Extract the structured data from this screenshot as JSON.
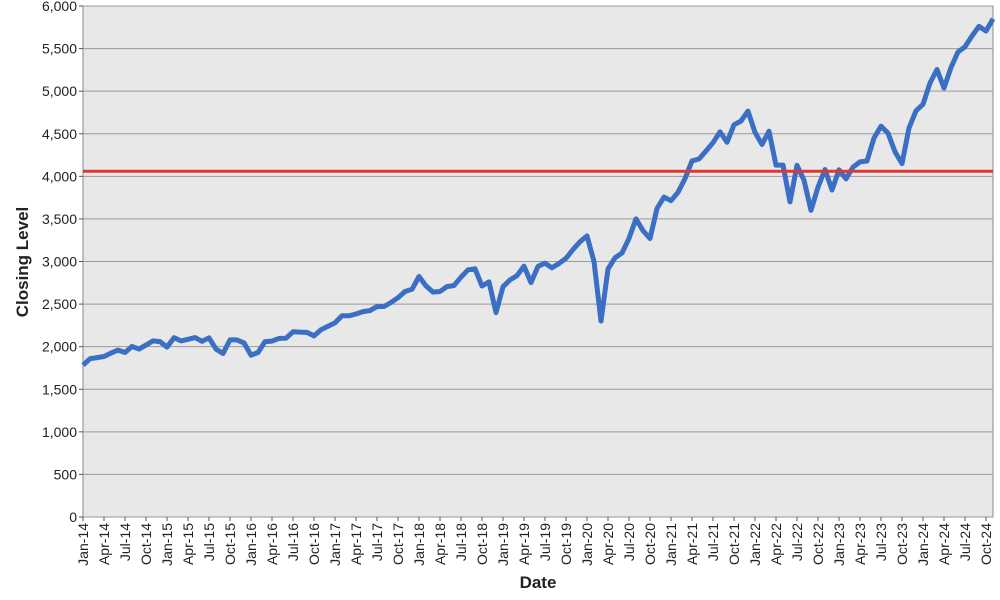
{
  "chart_data": {
    "type": "line",
    "x_label": "Date",
    "y_label": "Closing Level",
    "x": [
      "2014-01",
      "2014-02",
      "2014-03",
      "2014-04",
      "2014-05",
      "2014-06",
      "2014-07",
      "2014-08",
      "2014-09",
      "2014-10",
      "2014-11",
      "2014-12",
      "2015-01",
      "2015-02",
      "2015-03",
      "2015-04",
      "2015-05",
      "2015-06",
      "2015-07",
      "2015-08",
      "2015-09",
      "2015-10",
      "2015-11",
      "2015-12",
      "2016-01",
      "2016-02",
      "2016-03",
      "2016-04",
      "2016-05",
      "2016-06",
      "2016-07",
      "2016-08",
      "2016-09",
      "2016-10",
      "2016-11",
      "2016-12",
      "2017-01",
      "2017-02",
      "2017-03",
      "2017-04",
      "2017-05",
      "2017-06",
      "2017-07",
      "2017-08",
      "2017-09",
      "2017-10",
      "2017-11",
      "2017-12",
      "2018-01",
      "2018-02",
      "2018-03",
      "2018-04",
      "2018-05",
      "2018-06",
      "2018-07",
      "2018-08",
      "2018-09",
      "2018-10",
      "2018-11",
      "2018-12",
      "2019-01",
      "2019-02",
      "2019-03",
      "2019-04",
      "2019-05",
      "2019-06",
      "2019-07",
      "2019-08",
      "2019-09",
      "2019-10",
      "2019-11",
      "2019-12",
      "2020-01",
      "2020-02",
      "2020-03",
      "2020-04",
      "2020-05",
      "2020-06",
      "2020-07",
      "2020-08",
      "2020-09",
      "2020-10",
      "2020-11",
      "2020-12",
      "2021-01",
      "2021-02",
      "2021-03",
      "2021-04",
      "2021-05",
      "2021-06",
      "2021-07",
      "2021-08",
      "2021-09",
      "2021-10",
      "2021-11",
      "2021-12",
      "2022-01",
      "2022-02",
      "2022-03",
      "2022-04",
      "2022-05",
      "2022-06",
      "2022-07",
      "2022-08",
      "2022-09",
      "2022-10",
      "2022-11",
      "2022-12",
      "2023-01",
      "2023-02",
      "2023-03",
      "2023-04",
      "2023-05",
      "2023-06",
      "2023-07",
      "2023-08",
      "2023-09",
      "2023-10",
      "2023-11",
      "2023-12",
      "2024-01",
      "2024-02",
      "2024-03",
      "2024-04",
      "2024-05",
      "2024-06",
      "2024-07",
      "2024-08",
      "2024-09",
      "2024-10",
      "2024-11"
    ],
    "values": [
      1782,
      1859,
      1872,
      1884,
      1924,
      1960,
      1931,
      2003,
      1972,
      2018,
      2068,
      2059,
      1995,
      2105,
      2068,
      2086,
      2107,
      2063,
      2104,
      1972,
      1920,
      2079,
      2080,
      2044,
      1900,
      1932,
      2060,
      2065,
      2097,
      2099,
      2174,
      2171,
      2168,
      2126,
      2199,
      2239,
      2279,
      2364,
      2363,
      2384,
      2412,
      2423,
      2470,
      2472,
      2519,
      2575,
      2648,
      2674,
      2824,
      2714,
      2641,
      2648,
      2705,
      2718,
      2816,
      2902,
      2914,
      2712,
      2760,
      2400,
      2704,
      2784,
      2834,
      2946,
      2752,
      2942,
      2980,
      2926,
      2977,
      3038,
      3141,
      3231,
      3300,
      3000,
      2300,
      2912,
      3044,
      3100,
      3271,
      3500,
      3363,
      3270,
      3622,
      3756,
      3714,
      3811,
      3973,
      4181,
      4204,
      4298,
      4395,
      4523,
      4400,
      4605,
      4650,
      4766,
      4516,
      4374,
      4530,
      4132,
      4132,
      3700,
      4130,
      3955,
      3600,
      3872,
      4080,
      3840,
      4077,
      3970,
      4109,
      4169,
      4180,
      4450,
      4589,
      4508,
      4288,
      4150,
      4568,
      4770,
      4846,
      5096,
      5254,
      5036,
      5278,
      5460,
      5522,
      5648,
      5762,
      5705,
      5850
    ],
    "color": "#3a6fc4",
    "reference_line": {
      "value": 4060,
      "color": "#e23636"
    },
    "xlim": [
      "2014-01",
      "2024-11"
    ],
    "ylim": [
      0,
      6000
    ],
    "yticks": [
      0,
      {
        "value": 500,
        "label": "500"
      },
      {
        "value": 1000,
        "label": "1,000"
      },
      {
        "value": 1500,
        "label": "1,500"
      },
      {
        "value": 2000,
        "label": "2,000"
      },
      {
        "value": 2500,
        "label": "2,500"
      },
      {
        "value": 3000,
        "label": "3,000"
      },
      {
        "value": 3500,
        "label": "3,500"
      },
      {
        "value": 4000,
        "label": "4,000"
      },
      {
        "value": 4500,
        "label": "4,500"
      },
      {
        "value": 5000,
        "label": "5,000"
      },
      {
        "value": 5500,
        "label": "5,500"
      },
      {
        "value": 6000,
        "label": "6,000"
      }
    ],
    "xticks": [
      {
        "value": "2014-01",
        "label": "Jan-14"
      },
      {
        "value": "2014-04",
        "label": "Apr-14"
      },
      {
        "value": "2014-07",
        "label": "Jul-14"
      },
      {
        "value": "2014-10",
        "label": "Oct-14"
      },
      {
        "value": "2015-01",
        "label": "Jan-15"
      },
      {
        "value": "2015-04",
        "label": "Apr-15"
      },
      {
        "value": "2015-07",
        "label": "Jul-15"
      },
      {
        "value": "2015-10",
        "label": "Oct-15"
      },
      {
        "value": "2016-01",
        "label": "Jan-16"
      },
      {
        "value": "2016-04",
        "label": "Apr-16"
      },
      {
        "value": "2016-07",
        "label": "Jul-16"
      },
      {
        "value": "2016-10",
        "label": "Oct-16"
      },
      {
        "value": "2017-01",
        "label": "Jan-17"
      },
      {
        "value": "2017-04",
        "label": "Apr-17"
      },
      {
        "value": "2017-07",
        "label": "Jul-17"
      },
      {
        "value": "2017-10",
        "label": "Oct-17"
      },
      {
        "value": "2018-01",
        "label": "Jan-18"
      },
      {
        "value": "2018-04",
        "label": "Apr-18"
      },
      {
        "value": "2018-07",
        "label": "Jul-18"
      },
      {
        "value": "2018-10",
        "label": "Oct-18"
      },
      {
        "value": "2019-01",
        "label": "Jan-19"
      },
      {
        "value": "2019-04",
        "label": "Apr-19"
      },
      {
        "value": "2019-07",
        "label": "Jul-19"
      },
      {
        "value": "2019-10",
        "label": "Oct-19"
      },
      {
        "value": "2020-01",
        "label": "Jan-20"
      },
      {
        "value": "2020-04",
        "label": "Apr-20"
      },
      {
        "value": "2020-07",
        "label": "Jul-20"
      },
      {
        "value": "2020-10",
        "label": "Oct-20"
      },
      {
        "value": "2021-01",
        "label": "Jan-21"
      },
      {
        "value": "2021-04",
        "label": "Apr-21"
      },
      {
        "value": "2021-07",
        "label": "Jul-21"
      },
      {
        "value": "2021-10",
        "label": "Oct-21"
      },
      {
        "value": "2022-01",
        "label": "Jan-22"
      },
      {
        "value": "2022-04",
        "label": "Apr-22"
      },
      {
        "value": "2022-07",
        "label": "Jul-22"
      },
      {
        "value": "2022-10",
        "label": "Oct-22"
      },
      {
        "value": "2023-01",
        "label": "Jan-23"
      },
      {
        "value": "2023-04",
        "label": "Apr-23"
      },
      {
        "value": "2023-07",
        "label": "Jul-23"
      },
      {
        "value": "2023-10",
        "label": "Oct-23"
      },
      {
        "value": "2024-01",
        "label": "Jan-24"
      },
      {
        "value": "2024-04",
        "label": "Apr-24"
      },
      {
        "value": "2024-07",
        "label": "Jul-24"
      },
      {
        "value": "2024-10",
        "label": "Oct-24"
      }
    ],
    "grid": true
  }
}
